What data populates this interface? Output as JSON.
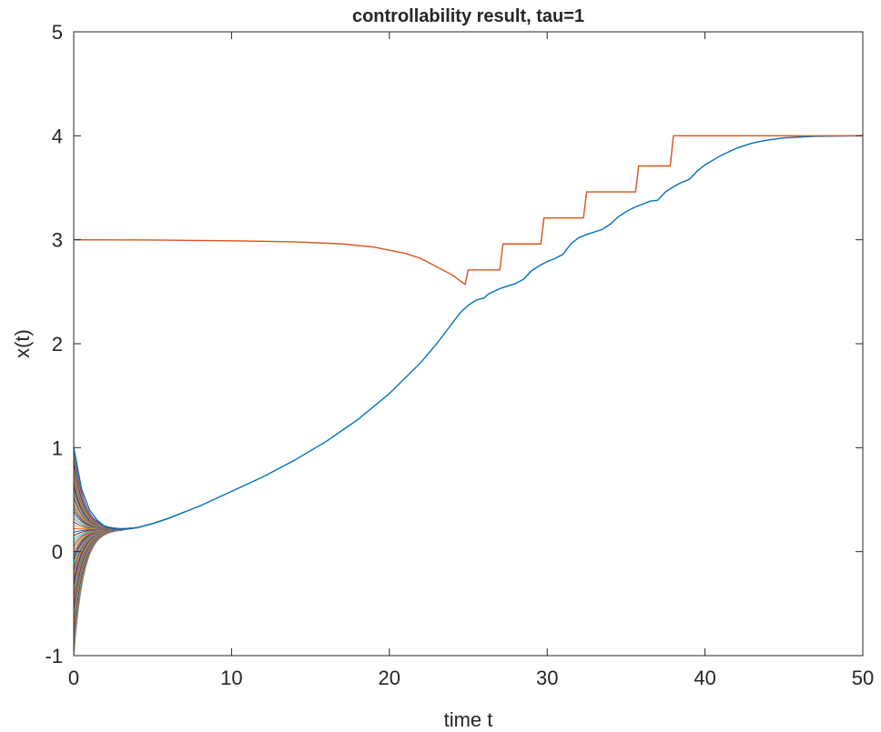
{
  "chart_data": {
    "type": "line",
    "title": "controllability result, tau=1",
    "xlabel": "time t",
    "ylabel": "x(t)",
    "xlim": [
      0,
      50
    ],
    "ylim": [
      -1,
      5
    ],
    "xticks": [
      0,
      10,
      20,
      30,
      40,
      50
    ],
    "xtick_labels": [
      "0",
      "10",
      "20",
      "30",
      "40",
      "50"
    ],
    "yticks": [
      -1,
      0,
      1,
      2,
      3,
      4,
      5
    ],
    "ytick_labels": [
      "-1",
      "0",
      "1",
      "2",
      "3",
      "4",
      "5"
    ],
    "grid": false,
    "legend": "none",
    "box": true,
    "bundle": {
      "note_count_lines": 60,
      "y0_min": -1,
      "y0_max": 1,
      "converge_t": 7,
      "colors": [
        "#0072BD",
        "#D95319",
        "#EDB120",
        "#7E2F8E",
        "#77AC30",
        "#4DBEEE",
        "#A2142F"
      ]
    },
    "series": [
      {
        "color": "#0072BD",
        "points": [
          [
            0,
            1.0
          ],
          [
            0.5,
            0.6
          ],
          [
            1,
            0.4
          ],
          [
            1.5,
            0.3
          ],
          [
            2,
            0.24
          ],
          [
            2.5,
            0.22
          ],
          [
            3,
            0.215
          ],
          [
            4,
            0.23
          ],
          [
            5,
            0.27
          ],
          [
            6,
            0.32
          ],
          [
            8,
            0.44
          ],
          [
            10,
            0.58
          ],
          [
            12,
            0.72
          ],
          [
            14,
            0.88
          ],
          [
            16,
            1.06
          ],
          [
            18,
            1.27
          ],
          [
            20,
            1.52
          ],
          [
            22,
            1.82
          ],
          [
            23,
            2.0
          ],
          [
            24,
            2.2
          ],
          [
            24.5,
            2.3
          ],
          [
            25,
            2.37
          ],
          [
            25.5,
            2.42
          ],
          [
            26,
            2.44
          ],
          [
            26.3,
            2.48
          ],
          [
            27,
            2.53
          ],
          [
            28,
            2.58
          ],
          [
            28.5,
            2.62
          ],
          [
            29,
            2.7
          ],
          [
            29.5,
            2.75
          ],
          [
            30,
            2.79
          ],
          [
            30.5,
            2.82
          ],
          [
            31,
            2.86
          ],
          [
            31.5,
            2.96
          ],
          [
            32,
            3.02
          ],
          [
            32.5,
            3.05
          ],
          [
            33.5,
            3.1
          ],
          [
            34,
            3.15
          ],
          [
            34.5,
            3.22
          ],
          [
            35,
            3.27
          ],
          [
            35.5,
            3.31
          ],
          [
            36.5,
            3.37
          ],
          [
            37,
            3.38
          ],
          [
            37.5,
            3.46
          ],
          [
            38,
            3.51
          ],
          [
            38.5,
            3.55
          ],
          [
            39,
            3.58
          ],
          [
            39.5,
            3.66
          ],
          [
            40,
            3.72
          ],
          [
            41,
            3.81
          ],
          [
            42,
            3.88
          ],
          [
            43,
            3.93
          ],
          [
            44,
            3.96
          ],
          [
            45,
            3.98
          ],
          [
            47,
            3.995
          ],
          [
            50,
            4.0
          ]
        ]
      },
      {
        "color": "#D95319",
        "points": [
          [
            0,
            3.0
          ],
          [
            5,
            2.998
          ],
          [
            10,
            2.99
          ],
          [
            14,
            2.98
          ],
          [
            17,
            2.96
          ],
          [
            19,
            2.93
          ],
          [
            21,
            2.87
          ],
          [
            22,
            2.82
          ],
          [
            23,
            2.74
          ],
          [
            24,
            2.66
          ],
          [
            24.8,
            2.57
          ],
          [
            25,
            2.71
          ],
          [
            27,
            2.71
          ],
          [
            27.2,
            2.96
          ],
          [
            29.6,
            2.96
          ],
          [
            29.8,
            3.21
          ],
          [
            32.3,
            3.21
          ],
          [
            32.5,
            3.46
          ],
          [
            35.6,
            3.46
          ],
          [
            35.8,
            3.71
          ],
          [
            37.8,
            3.71
          ],
          [
            38,
            4.0
          ],
          [
            50,
            4.0
          ]
        ]
      }
    ]
  }
}
